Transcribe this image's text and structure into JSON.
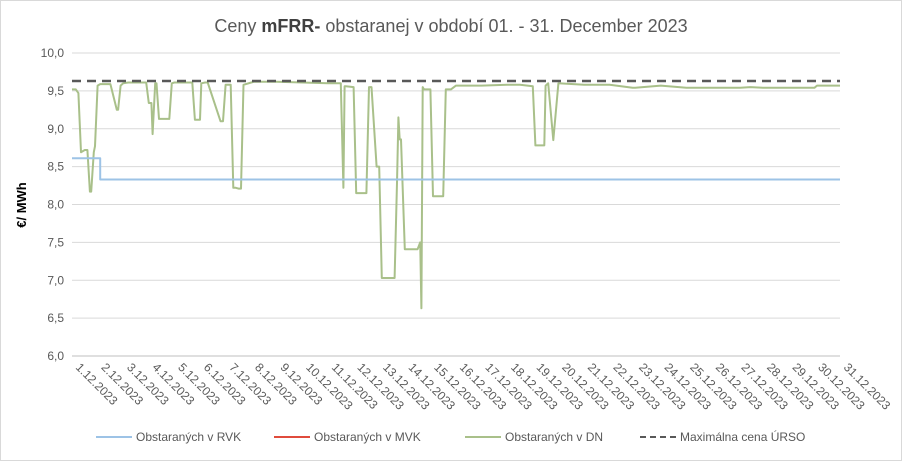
{
  "chart_data": {
    "type": "line",
    "title_prefix": "Ceny ",
    "title_bold": "mFRR-",
    "title_suffix": " obstaranej v období 01. - 31. December 2023",
    "ylabel": "€/ MWh",
    "xlabel": "",
    "ylim": [
      6.0,
      10.0
    ],
    "yticks": [
      "6,0",
      "6,5",
      "7,0",
      "7,5",
      "8,0",
      "8,5",
      "9,0",
      "9,5",
      "10,0"
    ],
    "ytick_values": [
      6.0,
      6.5,
      7.0,
      7.5,
      8.0,
      8.5,
      9.0,
      9.5,
      10.0
    ],
    "xlim": [
      1,
      31
    ],
    "xticks": [
      "1.12.2023",
      "2.12.2023",
      "3.12.2023",
      "4.12.2023",
      "5.12.2023",
      "6.12.2023",
      "7.12.2023",
      "8.12.2023",
      "9.12.2023",
      "10.12.2023",
      "11.12.2023",
      "12.12.2023",
      "13.12.2023",
      "14.12.2023",
      "15.12.2023",
      "16.12.2023",
      "17.12.2023",
      "18.12.2023",
      "19.12.2023",
      "20.12.2023",
      "21.12.2023",
      "22.12.2023",
      "23.12.2023",
      "24.12.2023",
      "25.12.2023",
      "26.12.2023",
      "27.12.2023",
      "28.12.2023",
      "29.12.2023",
      "30.12.2023",
      "31.12.2023"
    ],
    "grid": "horizontal",
    "legend_position": "bottom",
    "series": [
      {
        "name": "Obstaraných v RVK",
        "color": "#9dc3e6",
        "dash": "solid",
        "x": [
          1.0,
          2.1,
          2.1,
          31.0
        ],
        "y": [
          8.61,
          8.61,
          8.33,
          8.33
        ]
      },
      {
        "name": "Obstaraných v MVK",
        "color": "#e04b3c",
        "dash": "solid",
        "x": [],
        "y": []
      },
      {
        "name": "Obstaraných v DN",
        "color": "#a9c08a",
        "dash": "solid",
        "x": [
          1.0,
          1.15,
          1.25,
          1.35,
          1.5,
          1.6,
          1.7,
          1.75,
          1.85,
          1.9,
          2.0,
          2.1,
          2.5,
          2.75,
          2.8,
          2.9,
          3.0,
          3.2,
          3.9,
          4.0,
          4.1,
          4.15,
          4.25,
          4.3,
          4.4,
          4.5,
          4.8,
          4.9,
          5.0,
          5.7,
          5.8,
          6.0,
          6.05,
          6.2,
          6.3,
          6.8,
          6.9,
          7.0,
          7.2,
          7.3,
          7.35,
          7.4,
          7.5,
          7.6,
          7.7,
          8.0,
          8.1,
          8.2,
          8.3,
          9.0,
          10.0,
          11.0,
          11.5,
          11.6,
          11.65,
          11.7,
          12.0,
          12.1,
          12.5,
          12.6,
          12.7,
          12.9,
          13.0,
          13.1,
          13.6,
          13.7,
          13.75,
          13.8,
          13.85,
          14.0,
          14.05,
          14.5,
          14.6,
          14.65,
          14.7,
          14.75,
          15.0,
          15.1,
          15.5,
          15.6,
          15.8,
          16.0,
          17.0,
          18.0,
          18.4,
          18.5,
          19.0,
          19.1,
          19.3,
          19.45,
          19.5,
          19.6,
          19.8,
          20.0,
          21.0,
          22.0,
          22.9,
          23.0,
          24.0,
          25.0,
          26.0,
          27.0,
          27.1,
          27.5,
          28.0,
          29.0,
          30.0,
          30.1,
          31.0
        ],
        "y": [
          9.52,
          9.52,
          9.47,
          8.69,
          8.72,
          8.72,
          8.17,
          8.17,
          8.69,
          8.77,
          9.57,
          9.59,
          9.59,
          9.25,
          9.25,
          9.57,
          9.6,
          9.61,
          9.61,
          9.34,
          9.34,
          8.93,
          9.6,
          9.6,
          9.13,
          9.13,
          9.13,
          9.6,
          9.61,
          9.61,
          9.12,
          9.12,
          9.6,
          9.61,
          9.61,
          9.1,
          9.1,
          9.58,
          9.58,
          8.22,
          8.22,
          8.22,
          8.21,
          8.21,
          9.58,
          9.61,
          9.62,
          9.62,
          9.62,
          9.62,
          9.61,
          9.6,
          9.6,
          8.22,
          9.56,
          9.56,
          9.55,
          8.15,
          8.15,
          9.55,
          9.55,
          8.5,
          8.5,
          7.03,
          7.03,
          8.34,
          9.15,
          8.86,
          8.86,
          7.41,
          7.41,
          7.41,
          7.5,
          6.63,
          9.55,
          9.52,
          9.52,
          8.11,
          8.11,
          9.52,
          9.52,
          9.57,
          9.57,
          9.58,
          9.58,
          9.58,
          9.56,
          8.78,
          8.78,
          8.78,
          9.57,
          9.6,
          8.85,
          9.6,
          9.58,
          9.58,
          9.54,
          9.54,
          9.57,
          9.54,
          9.54,
          9.54,
          9.54,
          9.55,
          9.54,
          9.54,
          9.54,
          9.57,
          9.57
        ]
      },
      {
        "name": "Maximálna cena ÚRSO",
        "color": "#595959",
        "dash": "dashed",
        "x": [
          1.0,
          31.0
        ],
        "y": [
          9.63,
          9.63
        ]
      }
    ]
  }
}
